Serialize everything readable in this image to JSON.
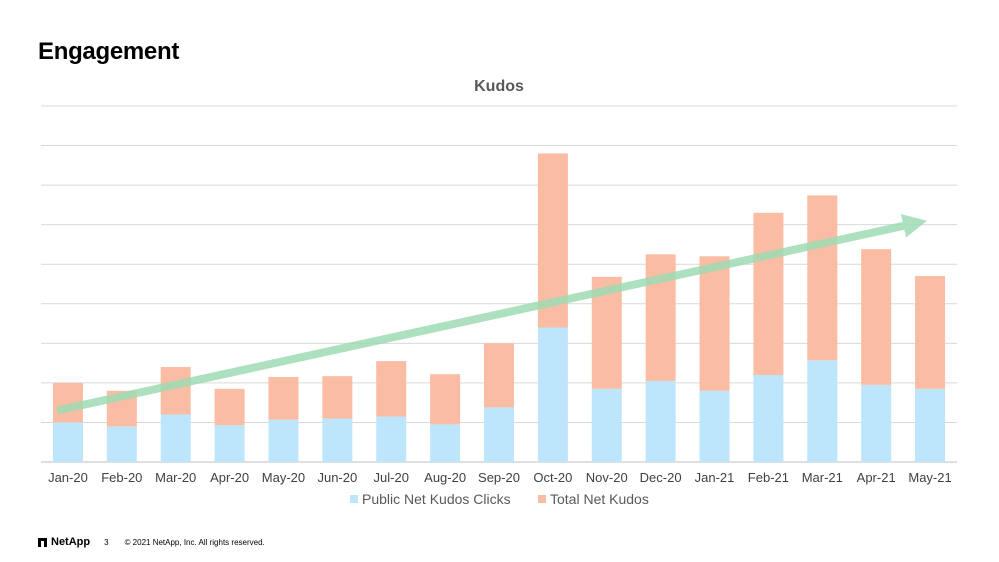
{
  "slide": {
    "title": "Engagement"
  },
  "footer": {
    "logo_text": "NetApp",
    "page_number": "3",
    "copyright": "© 2021 NetApp, Inc. All rights reserved."
  },
  "chart_data": {
    "type": "bar",
    "stacked": true,
    "title": "Kudos",
    "xlabel": "",
    "ylabel": "",
    "ylim": [
      0,
      9
    ],
    "grid": true,
    "legend_position": "bottom",
    "categories": [
      "Jan-20",
      "Feb-20",
      "Mar-20",
      "Apr-20",
      "May-20",
      "Jun-20",
      "Jul-20",
      "Aug-20",
      "Sep-20",
      "Oct-20",
      "Nov-20",
      "Dec-20",
      "Jan-21",
      "Feb-21",
      "Mar-21",
      "Apr-21",
      "May-21"
    ],
    "series": [
      {
        "name": "Public Net Kudos Clicks",
        "color": "#bde5fb",
        "values": [
          1.0,
          0.9,
          1.2,
          0.93,
          1.07,
          1.1,
          1.15,
          0.95,
          1.38,
          3.4,
          1.85,
          2.05,
          1.8,
          2.2,
          2.57,
          1.95,
          1.85
        ]
      },
      {
        "name": "Total Net Kudos",
        "color": "#fbbca4",
        "values": [
          1.0,
          0.9,
          1.2,
          0.92,
          1.08,
          1.07,
          1.4,
          1.27,
          1.62,
          4.4,
          2.83,
          3.2,
          3.4,
          4.1,
          4.17,
          3.43,
          2.85
        ]
      }
    ],
    "trend_arrow": {
      "color": "#9edbb3",
      "start_y": 1.3,
      "end_y": 6.1
    }
  }
}
